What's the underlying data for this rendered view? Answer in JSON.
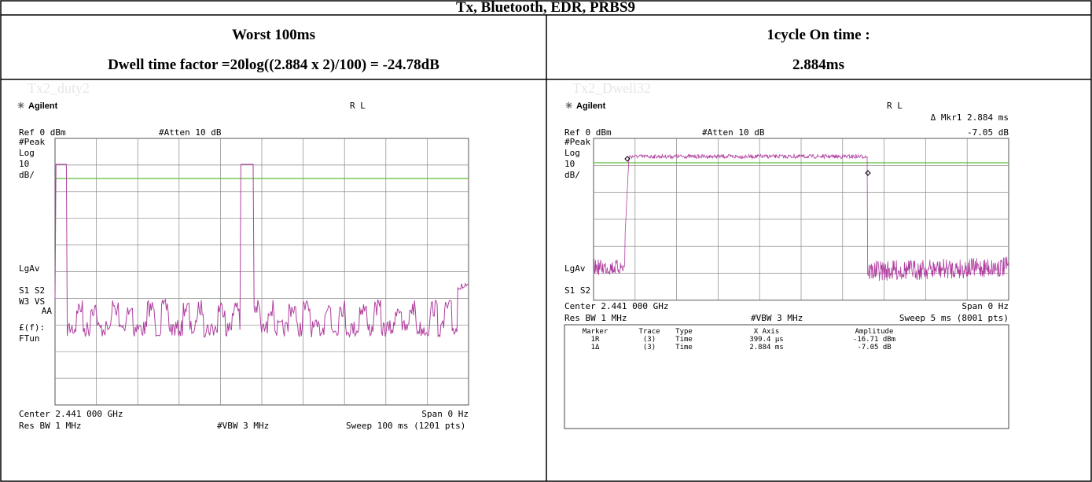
{
  "header": {
    "title": "Tx, Bluetooth, EDR, PRBS9"
  },
  "columns": [
    {
      "heading": [
        "Worst 100ms",
        "Dwell time factor =20log((2.884 x 2)/100) = -24.78dB"
      ]
    },
    {
      "heading": [
        "1cycle On time :",
        "2.884ms"
      ]
    }
  ],
  "screens": [
    {
      "caption": "Tx2_duty2",
      "brand": "Agilent",
      "mode": "R L",
      "ref": "Ref 0 dBm",
      "atten": "#Atten 10 dB",
      "left_labels": [
        "#Peak",
        "Log",
        "10",
        "dB/",
        "LgAv",
        "S1  S2",
        "W3  VS",
        "AA",
        "£(f):",
        "FTun"
      ],
      "center": "Center 2.441 000 GHz",
      "span": "Span 0 Hz",
      "rbw": "Res BW 1 MHz",
      "vbw": "#VBW 3 MHz",
      "sweep": "Sweep 100 ms (1201 pts)"
    },
    {
      "caption": "Tx2_Dwell32",
      "brand": "Agilent",
      "mode": "R L",
      "ref": "Ref 0 dBm",
      "atten": "#Atten 10 dB",
      "marker_readout": [
        "Δ Mkr1  2.884 ms",
        "-7.05 dB"
      ],
      "left_labels": [
        "#Peak",
        "Log",
        "10",
        "dB/",
        "LgAv",
        "S1  S2"
      ],
      "center": "Center 2.441 000 GHz",
      "span": "Span 0 Hz",
      "rbw": "Res BW 1 MHz",
      "vbw": "#VBW 3 MHz",
      "sweep": "Sweep 5 ms (8001 pts)",
      "marker_table": {
        "columns": [
          "Marker",
          "Trace",
          "Type",
          "X Axis",
          "Amplitude"
        ],
        "rows": [
          [
            "1R",
            "(3)",
            "Time",
            "399.4 µs",
            "-16.71 dBm"
          ],
          [
            "1Δ",
            "(3)",
            "Time",
            "2.884 ms",
            "-7.05 dB"
          ]
        ]
      }
    }
  ]
}
